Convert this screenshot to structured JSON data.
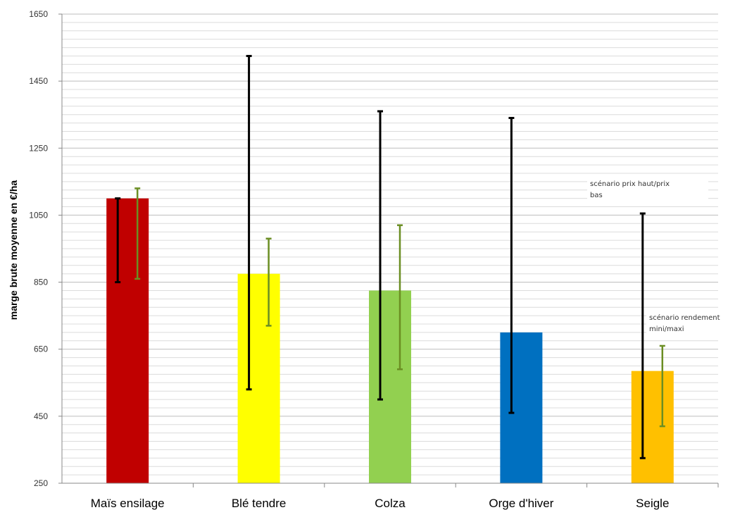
{
  "chart_data": {
    "type": "bar",
    "title": "",
    "xlabel": "",
    "ylabel": "marge brute moyenne en €/ha",
    "ylim": [
      250,
      1650
    ],
    "yticks": [
      250,
      450,
      650,
      850,
      1050,
      1250,
      1450,
      1650
    ],
    "grid": true,
    "categories": [
      "Maïs ensilage",
      "Blé tendre",
      "Colza",
      "Orge d'hiver",
      "Seigle"
    ],
    "values": [
      1100,
      875,
      825,
      700,
      585
    ],
    "bar_colors": [
      "#c00000",
      "#ffff00",
      "#92d050",
      "#0070c0",
      "#ffc000"
    ],
    "error_series": [
      {
        "name": "scénario prix haut/prix bas",
        "color": "#000000",
        "low": [
          850,
          530,
          500,
          460,
          325
        ],
        "high": [
          1100,
          1525,
          1360,
          1340,
          1055
        ]
      },
      {
        "name": "scénario rendement mini/maxi",
        "color": "#6b8e23",
        "low": [
          860,
          720,
          590,
          null,
          420
        ],
        "high": [
          1130,
          980,
          1020,
          null,
          660
        ]
      }
    ],
    "annotations": [
      {
        "lines": [
          "scénario prix haut/prix",
          "bas"
        ]
      },
      {
        "lines": [
          "scénario rendement",
          "mini/maxi"
        ]
      }
    ]
  }
}
